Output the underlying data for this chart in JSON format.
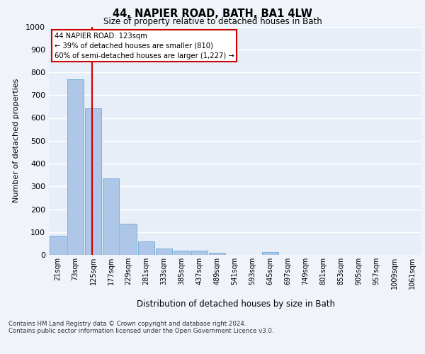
{
  "title": "44, NAPIER ROAD, BATH, BA1 4LW",
  "subtitle": "Size of property relative to detached houses in Bath",
  "xlabel": "Distribution of detached houses by size in Bath",
  "ylabel": "Number of detached properties",
  "categories": [
    "21sqm",
    "73sqm",
    "125sqm",
    "177sqm",
    "229sqm",
    "281sqm",
    "333sqm",
    "385sqm",
    "437sqm",
    "489sqm",
    "541sqm",
    "593sqm",
    "645sqm",
    "697sqm",
    "749sqm",
    "801sqm",
    "853sqm",
    "905sqm",
    "957sqm",
    "1009sqm",
    "1061sqm"
  ],
  "values": [
    83,
    770,
    643,
    335,
    135,
    60,
    27,
    20,
    18,
    10,
    0,
    0,
    12,
    0,
    0,
    0,
    0,
    0,
    0,
    0,
    0
  ],
  "bar_color": "#aec6e8",
  "bar_edge_color": "#6aaad4",
  "property_line_color": "#cc0000",
  "annotation_text": "44 NAPIER ROAD: 123sqm\n← 39% of detached houses are smaller (810)\n60% of semi-detached houses are larger (1,227) →",
  "annotation_box_color": "#ffffff",
  "annotation_box_edge_color": "#cc0000",
  "ylim": [
    0,
    1000
  ],
  "yticks": [
    0,
    100,
    200,
    300,
    400,
    500,
    600,
    700,
    800,
    900,
    1000
  ],
  "background_color": "#e8eef8",
  "grid_color": "#ffffff",
  "fig_background_color": "#f0f4fa",
  "footer_line1": "Contains HM Land Registry data © Crown copyright and database right 2024.",
  "footer_line2": "Contains public sector information licensed under the Open Government Licence v3.0."
}
